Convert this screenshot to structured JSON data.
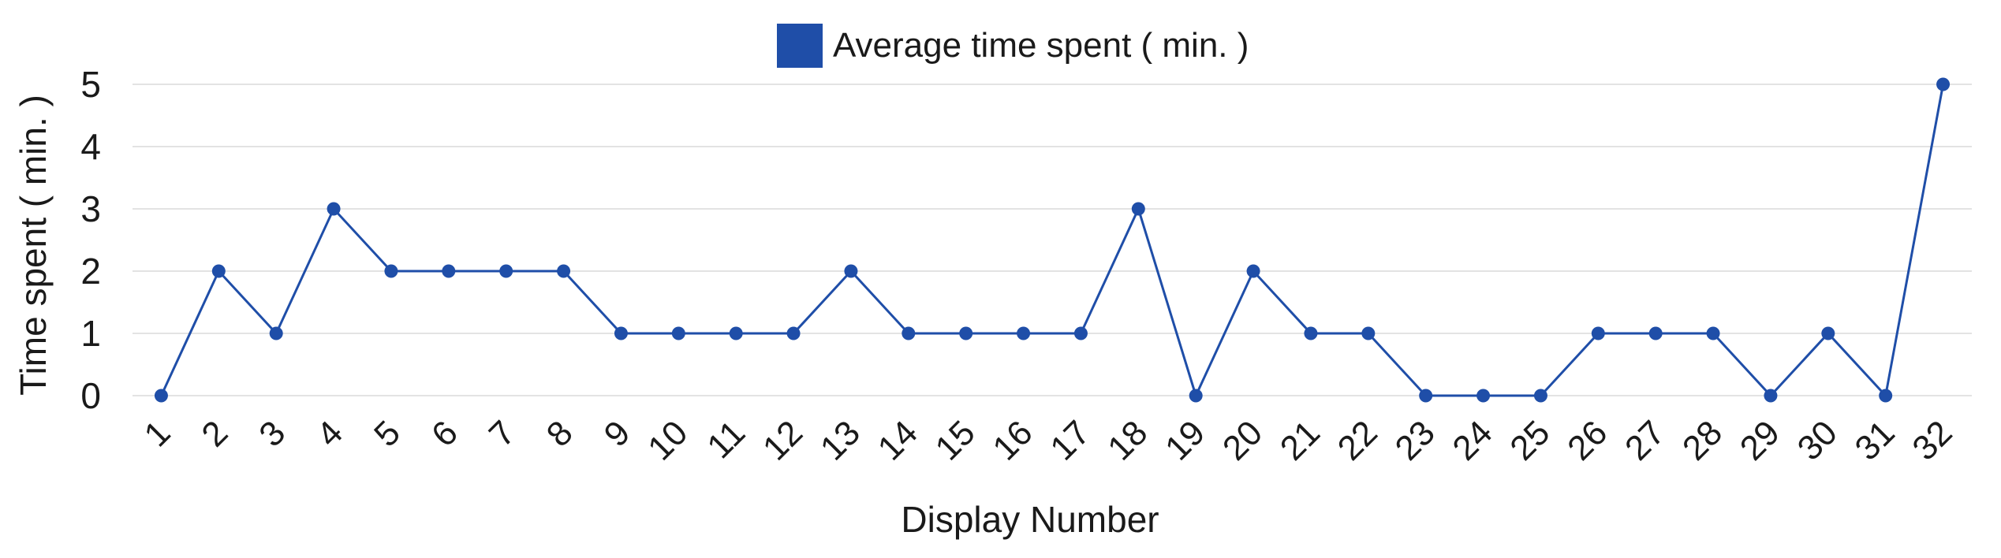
{
  "chart_data": {
    "type": "line",
    "legend": {
      "label": "Average time spent ( min. )",
      "color": "#1f4ea8",
      "position": "top-center"
    },
    "xlabel": "Display Number",
    "ylabel": "Time spent ( min. )",
    "ylim": [
      0,
      5
    ],
    "yticks": [
      "0",
      "1",
      "2",
      "3",
      "4",
      "5"
    ],
    "grid": true,
    "categories": [
      "1",
      "2",
      "3",
      "4",
      "5",
      "6",
      "7",
      "8",
      "9",
      "10",
      "11",
      "12",
      "13",
      "14",
      "15",
      "16",
      "17",
      "18",
      "19",
      "20",
      "21",
      "22",
      "23",
      "24",
      "25",
      "26",
      "27",
      "28",
      "29",
      "30",
      "31",
      "32"
    ],
    "series": [
      {
        "name": "Average time spent ( min. )",
        "color": "#1f4ea8",
        "values": [
          0,
          2,
          1,
          3,
          2,
          2,
          2,
          2,
          1,
          1,
          1,
          1,
          2,
          1,
          1,
          1,
          1,
          3,
          0,
          2,
          1,
          1,
          0,
          0,
          0,
          1,
          1,
          1,
          0,
          1,
          0,
          5
        ]
      }
    ]
  }
}
